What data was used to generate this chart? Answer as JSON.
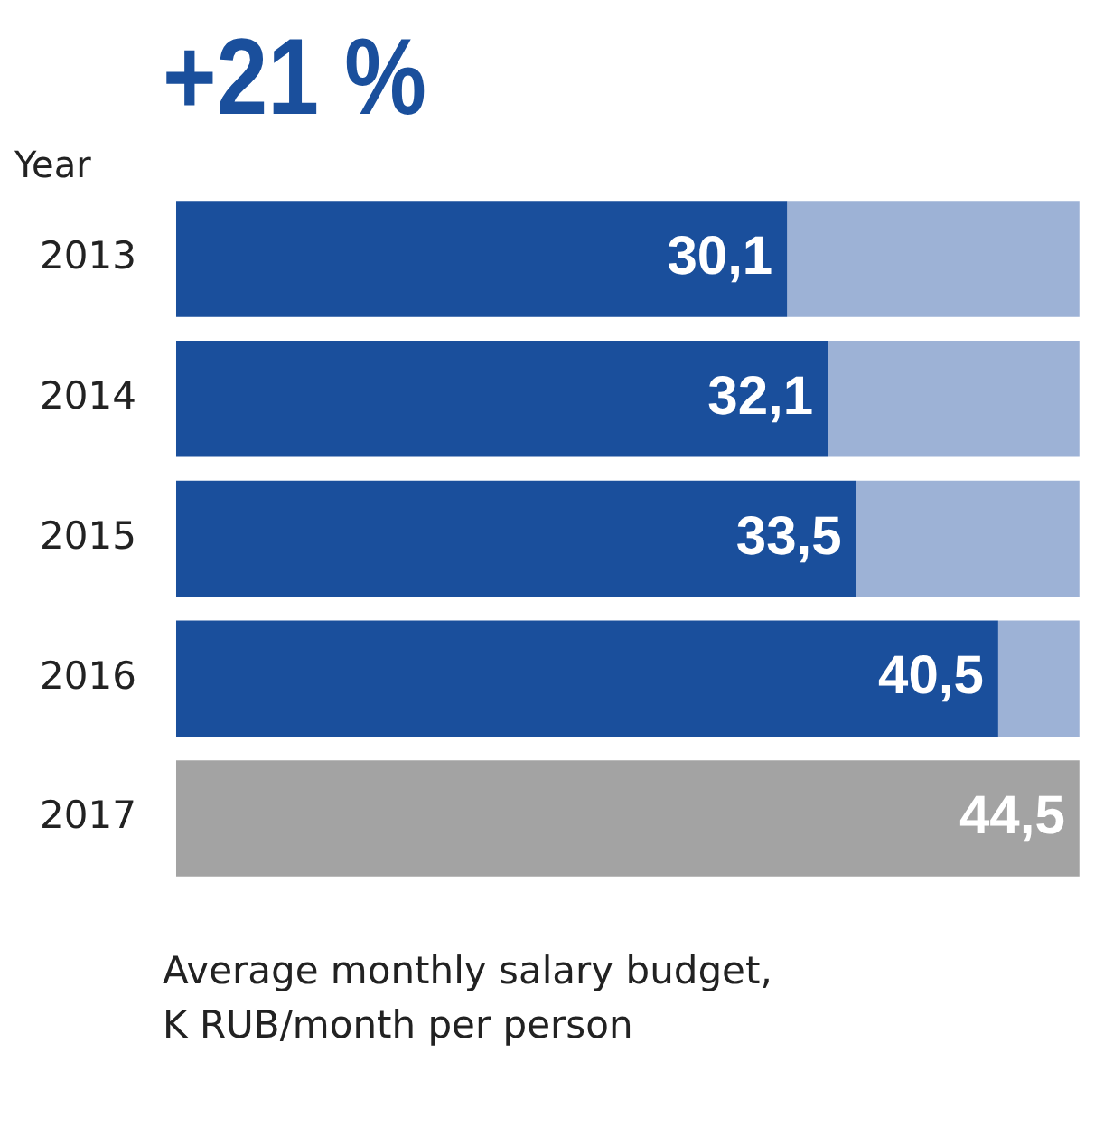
{
  "chart_data": {
    "type": "bar",
    "orientation": "horizontal",
    "stacked": true,
    "title": "+21 %",
    "ylabel": "Year",
    "categories": [
      "2013",
      "2014",
      "2015",
      "2016",
      "2017"
    ],
    "series": [
      {
        "colors": [
          "#1a4f9c",
          "#1a4f9c",
          "#1a4f9c",
          "#1a4f9c",
          "#a3a3a3"
        ],
        "values": [
          30.1,
          32.1,
          33.5,
          40.5,
          44.5
        ],
        "value_labels": [
          "30,1",
          "32,1",
          "33,5",
          "40,5",
          "44,5"
        ]
      },
      {
        "color": "#9db2d6",
        "values": [
          14.4,
          12.4,
          11,
          4,
          null
        ]
      }
    ],
    "annotations": [
      "Average monthly salary budget, K RUB/month per person"
    ],
    "legend": false
  }
}
